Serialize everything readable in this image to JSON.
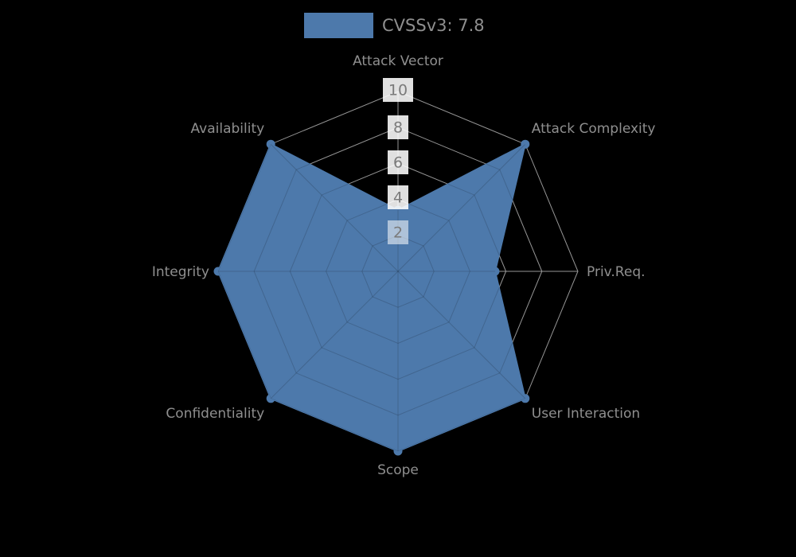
{
  "page": {
    "background_color": "#000000"
  },
  "legend": {
    "label": "CVSSv3: 7.8",
    "swatch_color": "#4d79ab"
  },
  "chart_data": {
    "type": "radar",
    "title": "CVSSv3: 7.8",
    "axes": [
      "Attack Vector",
      "Attack Complexity",
      "Priv.Req.",
      "User Interaction",
      "Scope",
      "Confidentiality",
      "Integrity",
      "Availability"
    ],
    "series": [
      {
        "name": "CVSSv3: 7.8",
        "values": [
          3.4,
          10,
          5.4,
          10,
          10,
          10,
          10,
          10
        ],
        "fill_color": "#4d79ab",
        "marker": "dot"
      }
    ],
    "scale": {
      "min": 0,
      "max": 10,
      "tick_values": [
        10,
        8,
        6,
        4,
        2
      ],
      "tick_labels": [
        "10",
        "8",
        "6",
        "4",
        "2"
      ]
    },
    "grid": {
      "shape": "octagon-web",
      "rings": 5,
      "line_color_outside": "#969696",
      "line_color_inside": "#476a9a"
    },
    "style": {
      "axis_label_color": "#8f8f8f",
      "tick_label_color": "#7a7a7a",
      "tick_box_color": "#ffffff"
    },
    "legend_position": "top-center"
  }
}
